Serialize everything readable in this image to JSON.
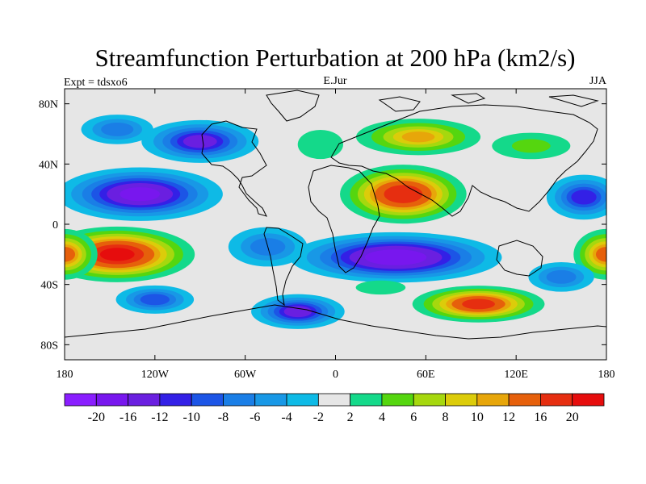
{
  "chart_data": {
    "type": "heatmap",
    "title": "Streamfunction Perturbation at 200 hPa (km2/s)",
    "subtitle_left": "Expt = tdsxo6",
    "subtitle_center": "E.Jur",
    "subtitle_right": "JJA",
    "xlim": [
      -180,
      180
    ],
    "ylim": [
      -90,
      90
    ],
    "x_ticks": [
      {
        "value": -180,
        "label": "180"
      },
      {
        "value": -120,
        "label": "120W"
      },
      {
        "value": -60,
        "label": "60W"
      },
      {
        "value": 0,
        "label": "0"
      },
      {
        "value": 60,
        "label": "60E"
      },
      {
        "value": 120,
        "label": "120E"
      },
      {
        "value": 180,
        "label": "180"
      }
    ],
    "y_ticks": [
      {
        "value": 80,
        "label": "80N"
      },
      {
        "value": 40,
        "label": "40N"
      },
      {
        "value": 0,
        "label": "0"
      },
      {
        "value": -40,
        "label": "40S"
      },
      {
        "value": -80,
        "label": "80S"
      }
    ],
    "background_color": "#e6e6e6",
    "levels": [
      -20,
      -16,
      -12,
      -10,
      -8,
      -6,
      -4,
      -2,
      2,
      4,
      6,
      8,
      10,
      12,
      16,
      20
    ],
    "colors": [
      "#8a1eff",
      "#7817ee",
      "#6a1fe0",
      "#3320e6",
      "#1c55e6",
      "#1a7ee6",
      "#1898e6",
      "#0ebae6",
      "#e6e6e6",
      "#14d98a",
      "#55d60f",
      "#a6d80e",
      "#dccc0a",
      "#e7a60a",
      "#e6600b",
      "#e62e10",
      "#e60d0d"
    ],
    "colorbar_labels": [
      "-20",
      "-16",
      "-12",
      "-10",
      "-8",
      "-6",
      "-4",
      "-2",
      "2",
      "4",
      "6",
      "8",
      "10",
      "12",
      "16",
      "20"
    ],
    "features": [
      {
        "lon": -90,
        "lat": 55,
        "value": -14,
        "sx": 28,
        "sy": 10
      },
      {
        "lon": -130,
        "lat": 20,
        "value": -18,
        "sx": 38,
        "sy": 12
      },
      {
        "lon": -145,
        "lat": 63,
        "value": -8,
        "sx": 20,
        "sy": 8
      },
      {
        "lon": 165,
        "lat": 18,
        "value": -12,
        "sx": 18,
        "sy": 11
      },
      {
        "lon": 45,
        "lat": 20,
        "value": 20,
        "sx": 28,
        "sy": 13
      },
      {
        "lon": 55,
        "lat": 58,
        "value": 11,
        "sx": 32,
        "sy": 9
      },
      {
        "lon": -10,
        "lat": 53,
        "value": 4,
        "sx": 18,
        "sy": 12
      },
      {
        "lon": 130,
        "lat": 52,
        "value": 5,
        "sx": 28,
        "sy": 9
      },
      {
        "lon": -145,
        "lat": -20,
        "value": 22,
        "sx": 34,
        "sy": 12
      },
      {
        "lon": 180,
        "lat": -20,
        "value": 14,
        "sx": 15,
        "sy": 12
      },
      {
        "lon": -180,
        "lat": -20,
        "value": 14,
        "sx": 15,
        "sy": 12
      },
      {
        "lon": 40,
        "lat": -22,
        "value": -20,
        "sx": 48,
        "sy": 11
      },
      {
        "lon": 150,
        "lat": -35,
        "value": -8,
        "sx": 18,
        "sy": 8
      },
      {
        "lon": -45,
        "lat": -15,
        "value": -8,
        "sx": 22,
        "sy": 11
      },
      {
        "lon": -120,
        "lat": -50,
        "value": -10,
        "sx": 20,
        "sy": 7
      },
      {
        "lon": -25,
        "lat": -58,
        "value": -14,
        "sx": 22,
        "sy": 8
      },
      {
        "lon": 95,
        "lat": -53,
        "value": 18,
        "sx": 30,
        "sy": 8
      },
      {
        "lon": 30,
        "lat": -42,
        "value": 4,
        "sx": 20,
        "sy": 5
      }
    ]
  }
}
